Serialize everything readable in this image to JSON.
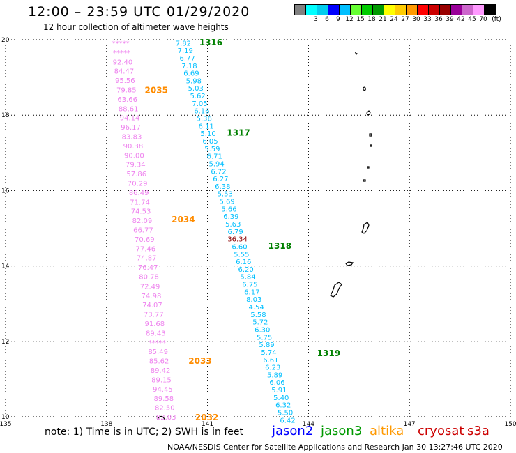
{
  "header": {
    "title": "12:00 – 23:59 UTC 01/29/2020",
    "subtitle": "12 hour collection of altimeter wave heights"
  },
  "legend": {
    "unit_label": "(ft)",
    "swatches": [
      {
        "color": "#808080",
        "label": ""
      },
      {
        "color": "#00ffff",
        "label": "3"
      },
      {
        "color": "#00ccee",
        "label": "6"
      },
      {
        "color": "#0000ff",
        "label": "9"
      },
      {
        "color": "#00bfff",
        "label": "12"
      },
      {
        "color": "#66ff33",
        "label": "15"
      },
      {
        "color": "#00cc00",
        "label": "18"
      },
      {
        "color": "#009900",
        "label": "21"
      },
      {
        "color": "#ffff00",
        "label": "24"
      },
      {
        "color": "#ffcc00",
        "label": "27"
      },
      {
        "color": "#ff9900",
        "label": "30"
      },
      {
        "color": "#ff0000",
        "label": "33"
      },
      {
        "color": "#cc0000",
        "label": "36"
      },
      {
        "color": "#990000",
        "label": "39"
      },
      {
        "color": "#990099",
        "label": "42"
      },
      {
        "color": "#cc66cc",
        "label": "45"
      },
      {
        "color": "#ff99ff",
        "label": "70"
      },
      {
        "color": "#000000",
        "label": ""
      }
    ]
  },
  "chart_data": {
    "type": "scatter",
    "x_ticks": [
      "135",
      "138",
      "141",
      "144",
      "147",
      "150"
    ],
    "y_ticks": [
      "10",
      "12",
      "14",
      "16",
      "18",
      "20"
    ],
    "xlim": [
      135,
      150
    ],
    "ylim": [
      10,
      20
    ],
    "grid": true,
    "colors": {
      "s3a": "#ee82ee",
      "jason3": "#00bfff",
      "high": "#8b0000",
      "pass_pink": "#ff8c00",
      "pass_blue": "#008000"
    },
    "series": [
      {
        "name": "s3a",
        "points": [
          {
            "lon": 138.42,
            "lat": 19.92,
            "label": "*****"
          },
          {
            "lon": 138.45,
            "lat": 19.67,
            "label": "*****"
          },
          {
            "lon": 138.48,
            "lat": 19.42,
            "label": "92.40"
          },
          {
            "lon": 138.52,
            "lat": 19.18,
            "label": "84.47"
          },
          {
            "lon": 138.55,
            "lat": 18.93,
            "label": "95.56"
          },
          {
            "lon": 138.59,
            "lat": 18.68,
            "label": "79.85"
          },
          {
            "lon": 138.62,
            "lat": 18.43,
            "label": "63.66"
          },
          {
            "lon": 138.65,
            "lat": 18.18,
            "label": "88.61"
          },
          {
            "lon": 138.69,
            "lat": 17.94,
            "label": "94.14"
          },
          {
            "lon": 138.72,
            "lat": 17.69,
            "label": "96.17"
          },
          {
            "lon": 138.75,
            "lat": 17.44,
            "label": "83.83"
          },
          {
            "lon": 138.79,
            "lat": 17.19,
            "label": "90.38"
          },
          {
            "lon": 138.82,
            "lat": 16.94,
            "label": "90.00"
          },
          {
            "lon": 138.86,
            "lat": 16.7,
            "label": "79.34"
          },
          {
            "lon": 138.89,
            "lat": 16.45,
            "label": "57.86"
          },
          {
            "lon": 138.92,
            "lat": 16.2,
            "label": "70.29"
          },
          {
            "lon": 138.96,
            "lat": 15.95,
            "label": "86.49"
          },
          {
            "lon": 138.99,
            "lat": 15.7,
            "label": "71.74"
          },
          {
            "lon": 139.02,
            "lat": 15.46,
            "label": "74.53"
          },
          {
            "lon": 139.06,
            "lat": 15.21,
            "label": "82.09"
          },
          {
            "lon": 139.09,
            "lat": 14.96,
            "label": "66.77"
          },
          {
            "lon": 139.13,
            "lat": 14.71,
            "label": "70.69"
          },
          {
            "lon": 139.16,
            "lat": 14.46,
            "label": "77.46"
          },
          {
            "lon": 139.19,
            "lat": 14.22,
            "label": "74.87"
          },
          {
            "lon": 139.23,
            "lat": 13.97,
            "label": "76.47"
          },
          {
            "lon": 139.26,
            "lat": 13.72,
            "label": "80.78"
          },
          {
            "lon": 139.29,
            "lat": 13.47,
            "label": "72.49"
          },
          {
            "lon": 139.33,
            "lat": 13.22,
            "label": "74.98"
          },
          {
            "lon": 139.36,
            "lat": 12.98,
            "label": "74.07"
          },
          {
            "lon": 139.4,
            "lat": 12.73,
            "label": "73.77"
          },
          {
            "lon": 139.43,
            "lat": 12.48,
            "label": "91.68"
          },
          {
            "lon": 139.46,
            "lat": 12.23,
            "label": "89.43"
          },
          {
            "lon": 139.5,
            "lat": 11.98,
            "label": "*****"
          },
          {
            "lon": 139.53,
            "lat": 11.74,
            "label": "85.49"
          },
          {
            "lon": 139.56,
            "lat": 11.49,
            "label": "85.62"
          },
          {
            "lon": 139.6,
            "lat": 11.24,
            "label": "89.42"
          },
          {
            "lon": 139.63,
            "lat": 10.99,
            "label": "89.15"
          },
          {
            "lon": 139.67,
            "lat": 10.74,
            "label": "94.45"
          },
          {
            "lon": 139.7,
            "lat": 10.5,
            "label": "89.58"
          },
          {
            "lon": 139.73,
            "lat": 10.25,
            "label": "82.50"
          },
          {
            "lon": 139.77,
            "lat": 10.0,
            "label": "82.03"
          }
        ]
      },
      {
        "name": "jason3",
        "points": [
          {
            "lon": 140.28,
            "lat": 19.92,
            "label": "7.82"
          },
          {
            "lon": 140.34,
            "lat": 19.72,
            "label": "7.19"
          },
          {
            "lon": 140.4,
            "lat": 19.52,
            "label": "6.77"
          },
          {
            "lon": 140.46,
            "lat": 19.32,
            "label": "7.18"
          },
          {
            "lon": 140.52,
            "lat": 19.12,
            "label": "6.69"
          },
          {
            "lon": 140.59,
            "lat": 18.92,
            "label": "5.98"
          },
          {
            "lon": 140.65,
            "lat": 18.72,
            "label": "5.03"
          },
          {
            "lon": 140.71,
            "lat": 18.52,
            "label": "5.62"
          },
          {
            "lon": 140.77,
            "lat": 18.32,
            "label": "7.05"
          },
          {
            "lon": 140.83,
            "lat": 18.12,
            "label": "6.16"
          },
          {
            "lon": 140.9,
            "lat": 17.92,
            "label": "5.36"
          },
          {
            "lon": 140.96,
            "lat": 17.72,
            "label": "6.11"
          },
          {
            "lon": 141.02,
            "lat": 17.52,
            "label": "5.10"
          },
          {
            "lon": 141.08,
            "lat": 17.32,
            "label": "6.05"
          },
          {
            "lon": 141.14,
            "lat": 17.12,
            "label": "5.59"
          },
          {
            "lon": 141.21,
            "lat": 16.92,
            "label": "6.71"
          },
          {
            "lon": 141.27,
            "lat": 16.72,
            "label": "5.94"
          },
          {
            "lon": 141.33,
            "lat": 16.52,
            "label": "6.72"
          },
          {
            "lon": 141.39,
            "lat": 16.32,
            "label": "6.27"
          },
          {
            "lon": 141.45,
            "lat": 16.12,
            "label": "6.38"
          },
          {
            "lon": 141.52,
            "lat": 15.92,
            "label": "5.53"
          },
          {
            "lon": 141.58,
            "lat": 15.72,
            "label": "5.69"
          },
          {
            "lon": 141.64,
            "lat": 15.52,
            "label": "5.66"
          },
          {
            "lon": 141.7,
            "lat": 15.32,
            "label": "6.39"
          },
          {
            "lon": 141.76,
            "lat": 15.12,
            "label": "5.63"
          },
          {
            "lon": 141.83,
            "lat": 14.92,
            "label": "6.79"
          },
          {
            "lon": 141.89,
            "lat": 14.72,
            "label": "36.34",
            "class": "high"
          },
          {
            "lon": 141.95,
            "lat": 14.52,
            "label": "6.60"
          },
          {
            "lon": 142.01,
            "lat": 14.32,
            "label": "5.55"
          },
          {
            "lon": 142.07,
            "lat": 14.12,
            "label": "6.16"
          },
          {
            "lon": 142.14,
            "lat": 13.92,
            "label": "6.20"
          },
          {
            "lon": 142.2,
            "lat": 13.72,
            "label": "5.84"
          },
          {
            "lon": 142.26,
            "lat": 13.52,
            "label": "6.75"
          },
          {
            "lon": 142.32,
            "lat": 13.32,
            "label": "6.17"
          },
          {
            "lon": 142.38,
            "lat": 13.12,
            "label": "8.03"
          },
          {
            "lon": 142.45,
            "lat": 12.92,
            "label": "4.54"
          },
          {
            "lon": 142.51,
            "lat": 12.72,
            "label": "5.58"
          },
          {
            "lon": 142.57,
            "lat": 12.52,
            "label": "5.72"
          },
          {
            "lon": 142.63,
            "lat": 12.32,
            "label": "6.30"
          },
          {
            "lon": 142.69,
            "lat": 12.12,
            "label": "5.75"
          },
          {
            "lon": 142.76,
            "lat": 11.92,
            "label": "5.89"
          },
          {
            "lon": 142.82,
            "lat": 11.72,
            "label": "5.74"
          },
          {
            "lon": 142.88,
            "lat": 11.52,
            "label": "6.61"
          },
          {
            "lon": 142.94,
            "lat": 11.32,
            "label": "6.23"
          },
          {
            "lon": 143.0,
            "lat": 11.12,
            "label": "5.89"
          },
          {
            "lon": 143.07,
            "lat": 10.92,
            "label": "6.06"
          },
          {
            "lon": 143.13,
            "lat": 10.72,
            "label": "5.91"
          },
          {
            "lon": 143.19,
            "lat": 10.52,
            "label": "5.40"
          },
          {
            "lon": 143.25,
            "lat": 10.32,
            "label": "6.32"
          },
          {
            "lon": 143.31,
            "lat": 10.12,
            "label": "5.50"
          },
          {
            "lon": 143.38,
            "lat": 9.92,
            "label": "6.42"
          }
        ]
      }
    ],
    "pass_labels": [
      {
        "text": "1316",
        "lon": 141.1,
        "lat": 19.94,
        "kind": "pass_blue"
      },
      {
        "text": "1317",
        "lon": 141.92,
        "lat": 17.55,
        "kind": "pass_blue"
      },
      {
        "text": "1318",
        "lon": 143.15,
        "lat": 14.55,
        "kind": "pass_blue"
      },
      {
        "text": "1319",
        "lon": 144.6,
        "lat": 11.7,
        "kind": "pass_blue"
      },
      {
        "text": "2035",
        "lon": 139.48,
        "lat": 18.68,
        "kind": "pass_pink"
      },
      {
        "text": "2034",
        "lon": 140.28,
        "lat": 15.25,
        "kind": "pass_pink"
      },
      {
        "text": "2033",
        "lon": 140.78,
        "lat": 11.5,
        "kind": "pass_pink"
      },
      {
        "text": "2032",
        "lon": 140.98,
        "lat": 10.0,
        "kind": "pass_pink"
      }
    ]
  },
  "footer": {
    "note": "note: 1) Time is in UTC; 2) SWH is in feet",
    "satellites": [
      {
        "name": "jason2",
        "color": "#0000ff"
      },
      {
        "name": "jason3",
        "color": "#009900"
      },
      {
        "name": "altika",
        "color": "#ff9900"
      },
      {
        "name": "cryosat",
        "color": "#cc0000"
      },
      {
        "name": "s3a",
        "color": "#cc0000"
      }
    ],
    "credit": "NOAA/NESDIS Center for Satellite Applications and Research   Jan 30 13:27:46 UTC 2020"
  }
}
